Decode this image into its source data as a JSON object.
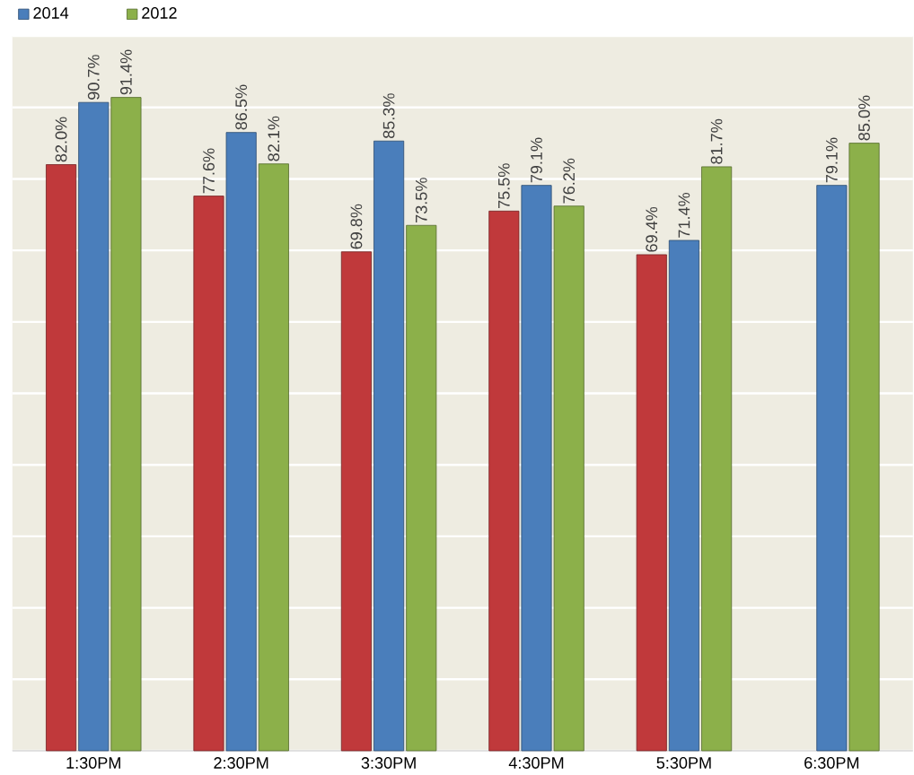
{
  "chart_data": {
    "type": "bar",
    "categories": [
      "1:30PM",
      "2:30PM",
      "3:30PM",
      "4:30PM",
      "5:30PM",
      "6:30PM"
    ],
    "series": [
      {
        "color": "#c0393b",
        "values": [
          82.0,
          77.6,
          69.8,
          75.5,
          69.4,
          null
        ],
        "value_labels": [
          "82.0%",
          "77.6%",
          "69.8%",
          "75.5%",
          "69.4%",
          null
        ]
      },
      {
        "name": "2014",
        "color": "#4a7ebb",
        "values": [
          90.7,
          86.5,
          85.3,
          79.1,
          71.4,
          79.1
        ],
        "value_labels": [
          "90.7%",
          "86.5%",
          "85.3%",
          "79.1%",
          "71.4%",
          "79.1%"
        ]
      },
      {
        "name": "2012",
        "color": "#8cb04a",
        "values": [
          91.4,
          82.1,
          73.5,
          76.2,
          81.7,
          85.0
        ],
        "value_labels": [
          "91.4%",
          "82.1%",
          "73.5%",
          "76.2%",
          "81.7%",
          "85.0%"
        ]
      }
    ],
    "ylim": [
      0,
      100
    ],
    "yticks": [
      {
        "value": 0,
        "label": null
      },
      {
        "value": 10,
        "label": null
      },
      {
        "value": 20,
        "label": null
      },
      {
        "value": 30,
        "label": null
      },
      {
        "value": 40,
        "label": null
      },
      {
        "value": 50,
        "label": null
      },
      {
        "value": 60,
        "label": null
      },
      {
        "value": 70,
        "label": null
      },
      {
        "value": 80,
        "label": null
      },
      {
        "value": 90,
        "label": null
      },
      {
        "value": 100,
        "label": null
      }
    ],
    "grid": "y",
    "legend": "top left",
    "tick_labels": "x"
  }
}
